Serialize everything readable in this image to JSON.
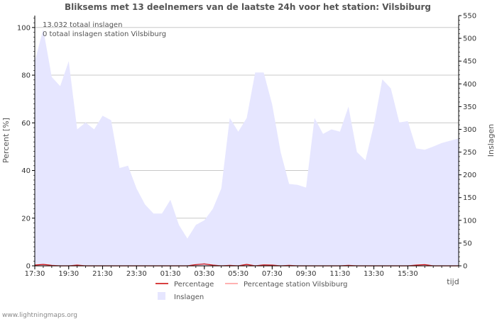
{
  "chart_data": {
    "type": "area",
    "title": "Bliksems met 13 deelnemers van de laatste 24h voor het station: Vilsbiburg",
    "ylabel_left": "Percent   [%]",
    "ylabel_right": "Inslagen",
    "xlabel": "tijd",
    "ylim_left": [
      0,
      105
    ],
    "ylim_right": [
      0,
      550
    ],
    "left_ticks": [
      0,
      20,
      40,
      60,
      80,
      100
    ],
    "right_ticks": [
      0,
      50,
      100,
      150,
      200,
      250,
      300,
      350,
      400,
      450,
      500,
      550
    ],
    "x_tick_labels": [
      "17:30",
      "19:30",
      "21:30",
      "23:30",
      "01:30",
      "03:30",
      "05:30",
      "07:30",
      "09:30",
      "11:30",
      "13:30",
      "15:30"
    ],
    "x_start_minutes": 1050,
    "x_end_minutes": 2550,
    "annotations": [
      "13.032 totaal inslagen",
      "0 totaal inslagen station Vilsbiburg"
    ],
    "series": [
      {
        "name": "Inslagen",
        "color": "#e6e6ff",
        "x_minutes": [
          1050,
          1080,
          1110,
          1140,
          1170,
          1200,
          1230,
          1260,
          1290,
          1320,
          1350,
          1380,
          1410,
          1440,
          1470,
          1500,
          1530,
          1560,
          1590,
          1620,
          1650,
          1680,
          1710,
          1740,
          1770,
          1800,
          1830,
          1860,
          1890,
          1920,
          1950,
          1980,
          2010,
          2040,
          2070,
          2100,
          2130,
          2160,
          2190,
          2220,
          2250,
          2280,
          2310,
          2340,
          2370,
          2400,
          2430,
          2460,
          2490,
          2520,
          2550
        ],
        "values": [
          450,
          520,
          415,
          395,
          450,
          300,
          315,
          300,
          330,
          320,
          215,
          220,
          170,
          135,
          115,
          115,
          145,
          90,
          60,
          90,
          100,
          125,
          170,
          325,
          295,
          325,
          425,
          425,
          355,
          250,
          180,
          178,
          172,
          325,
          290,
          300,
          295,
          350,
          250,
          232,
          310,
          410,
          390,
          315,
          318,
          258,
          255,
          262,
          270,
          275,
          280
        ]
      },
      {
        "name": "Percentage",
        "color": "#cc0000",
        "x_minutes": [
          1050,
          1080,
          1110,
          1140,
          1170,
          1200,
          1230,
          1260,
          1290,
          1320,
          1350,
          1380,
          1410,
          1440,
          1470,
          1500,
          1530,
          1560,
          1590,
          1620,
          1650,
          1680,
          1710,
          1740,
          1770,
          1800,
          1830,
          1860,
          1890,
          1920,
          1950,
          1980,
          2010,
          2040,
          2070,
          2100,
          2130,
          2160,
          2190,
          2220,
          2250,
          2280,
          2310,
          2340,
          2370,
          2400,
          2430,
          2460,
          2490,
          2520,
          2550
        ],
        "values": [
          0.3,
          0.6,
          0.2,
          0,
          0,
          0.3,
          0,
          0,
          0,
          0,
          0,
          0,
          0,
          0,
          0,
          0,
          0,
          0,
          0,
          0.5,
          0.8,
          0.3,
          0,
          0.2,
          0,
          0.6,
          0,
          0.4,
          0.3,
          0,
          0.2,
          0,
          0,
          0,
          0,
          0,
          0,
          0.2,
          0,
          0,
          0,
          0,
          0,
          0,
          0,
          0.3,
          0.5,
          0,
          0,
          0,
          0
        ]
      },
      {
        "name": "Percentage station Vilsbiburg",
        "color": "#ff9999",
        "x_minutes": [
          1050,
          2550
        ],
        "values": [
          0,
          0
        ]
      }
    ],
    "legend": [
      "Percentage",
      "Percentage station Vilsbiburg",
      "Inslagen"
    ]
  },
  "footer": "www.lightningmaps.org"
}
